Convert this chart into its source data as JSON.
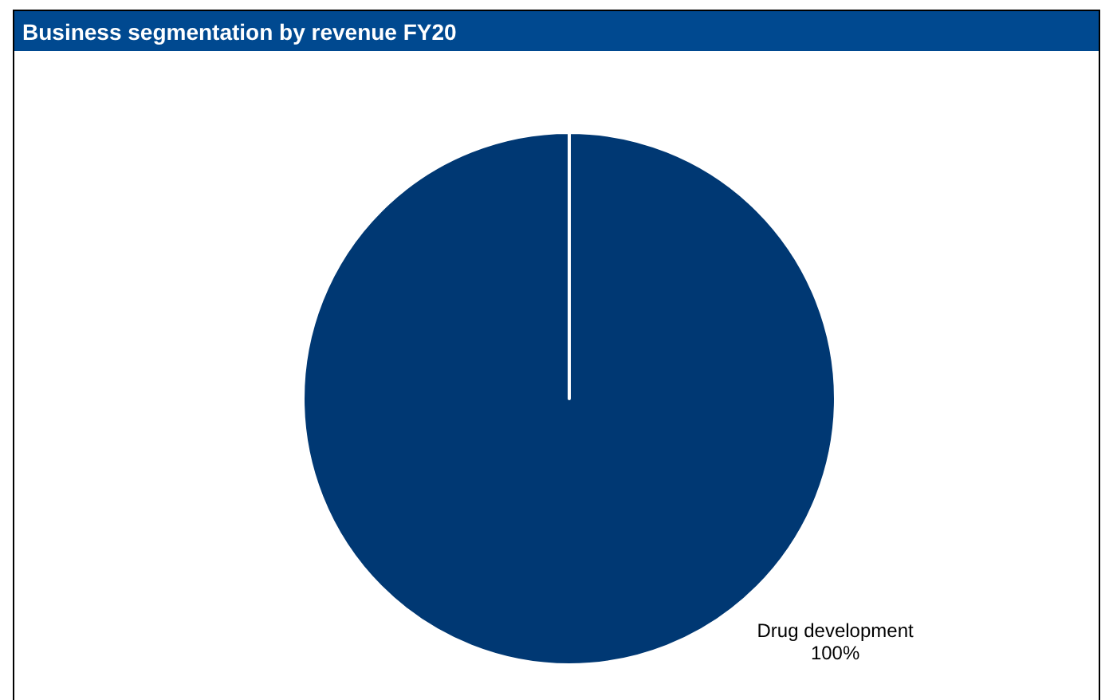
{
  "chart_data": {
    "type": "pie",
    "title": "Business segmentation by revenue FY20",
    "categories": [
      "Drug development"
    ],
    "values": [
      100
    ],
    "colors": [
      "#003873"
    ],
    "value_labels": [
      "100%"
    ]
  }
}
